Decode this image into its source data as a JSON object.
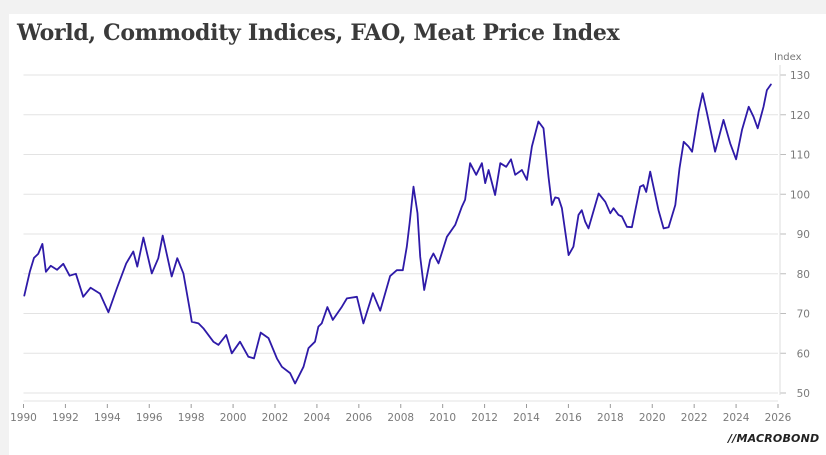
{
  "chart_data": {
    "type": "line",
    "title": "World, Commodity Indices, FAO, Meat Price Index",
    "ylabel": "Index",
    "xlabel": "",
    "xlim": [
      1990,
      2026
    ],
    "ylim": [
      50,
      130
    ],
    "x_ticks": [
      "1990",
      "1992",
      "1994",
      "1996",
      "1998",
      "2000",
      "2002",
      "2004",
      "2006",
      "2008",
      "2010",
      "2012",
      "2014",
      "2016",
      "2018",
      "2020",
      "2022",
      "2024",
      "2026"
    ],
    "y_ticks": [
      "50",
      "60",
      "70",
      "80",
      "90",
      "100",
      "110",
      "120",
      "130"
    ],
    "y_axis_side": "right",
    "grid": true,
    "legend": "none",
    "line_color": "#2e1aa8",
    "series": [
      {
        "name": "FAO Meat Price Index",
        "x": [
          1990.04,
          1990.3,
          1990.5,
          1990.7,
          1990.9,
          1991.07,
          1991.3,
          1991.6,
          1991.9,
          1992.2,
          1992.5,
          1992.85,
          1993.2,
          1993.65,
          1994.05,
          1994.45,
          1994.9,
          1995.24,
          1995.43,
          1995.72,
          1996.12,
          1996.43,
          1996.64,
          1997.07,
          1997.34,
          1997.63,
          1997.95,
          1998.03,
          1998.35,
          1998.58,
          1999.06,
          1999.3,
          1999.67,
          1999.94,
          2000.33,
          2000.73,
          2001.0,
          2001.32,
          2001.69,
          2002.09,
          2002.33,
          2002.72,
          2002.96,
          2003.36,
          2003.6,
          2003.91,
          2004.07,
          2004.23,
          2004.5,
          2004.76,
          2005.19,
          2005.43,
          2005.91,
          2006.22,
          2006.67,
          2007.02,
          2007.49,
          2007.81,
          2008.1,
          2008.29,
          2008.42,
          2008.61,
          2008.8,
          2008.93,
          2009.12,
          2009.4,
          2009.56,
          2009.8,
          2010.2,
          2010.6,
          2010.92,
          2011.07,
          2011.31,
          2011.6,
          2011.87,
          2012.03,
          2012.19,
          2012.5,
          2012.75,
          2013.03,
          2013.26,
          2013.46,
          2013.78,
          2014.02,
          2014.26,
          2014.57,
          2014.81,
          2015.05,
          2015.21,
          2015.37,
          2015.53,
          2015.69,
          2016.01,
          2016.24,
          2016.48,
          2016.64,
          2016.8,
          2016.96,
          2017.44,
          2017.76,
          2018.0,
          2018.15,
          2018.39,
          2018.55,
          2018.79,
          2019.03,
          2019.42,
          2019.58,
          2019.71,
          2019.9,
          2020.3,
          2020.54,
          2020.78,
          2021.1,
          2021.3,
          2021.5,
          2021.73,
          2021.9,
          2022.21,
          2022.4,
          2022.61,
          2023.0,
          2023.4,
          2023.72,
          2024.0,
          2024.28,
          2024.6,
          2024.83,
          2025.03,
          2025.31,
          2025.47,
          2025.66
        ],
        "values": [
          74.5,
          80.5,
          84.0,
          85.0,
          87.5,
          80.5,
          82.0,
          81.0,
          82.5,
          79.5,
          80.0,
          74.2,
          76.5,
          75.0,
          70.3,
          76.3,
          82.6,
          85.6,
          81.8,
          89.1,
          80.1,
          83.9,
          89.6,
          79.3,
          83.9,
          80.1,
          70.5,
          67.9,
          67.5,
          66.3,
          62.9,
          62.1,
          64.6,
          60.0,
          62.9,
          59.1,
          58.7,
          65.2,
          63.8,
          58.7,
          56.6,
          55.0,
          52.4,
          56.6,
          61.3,
          62.9,
          66.7,
          67.5,
          71.6,
          68.4,
          71.7,
          73.8,
          74.2,
          67.5,
          75.1,
          70.7,
          79.4,
          80.9,
          80.9,
          86.8,
          92.7,
          101.9,
          95.2,
          84.3,
          75.9,
          83.5,
          85.1,
          82.6,
          89.3,
          92.3,
          96.9,
          98.6,
          107.8,
          104.9,
          107.8,
          102.8,
          106.1,
          99.8,
          107.8,
          106.9,
          108.8,
          104.9,
          106.1,
          103.6,
          112.0,
          118.3,
          116.6,
          104.4,
          97.3,
          99.2,
          99.0,
          96.5,
          84.7,
          86.8,
          94.8,
          96.0,
          93.1,
          91.4,
          100.2,
          98.1,
          95.2,
          96.5,
          94.8,
          94.4,
          91.8,
          91.7,
          101.9,
          102.3,
          100.6,
          105.7,
          96.0,
          91.4,
          91.7,
          97.3,
          106.5,
          113.2,
          112.0,
          110.7,
          120.8,
          125.4,
          120.4,
          110.7,
          118.7,
          112.8,
          108.8,
          116.2,
          122.0,
          119.5,
          116.6,
          122.0,
          126.2,
          127.6
        ]
      }
    ]
  },
  "header": {
    "title": "World, Commodity Indices, FAO, Meat Price Index",
    "unit_label": "Index"
  },
  "footer": {
    "brand": "MACROBOND"
  }
}
